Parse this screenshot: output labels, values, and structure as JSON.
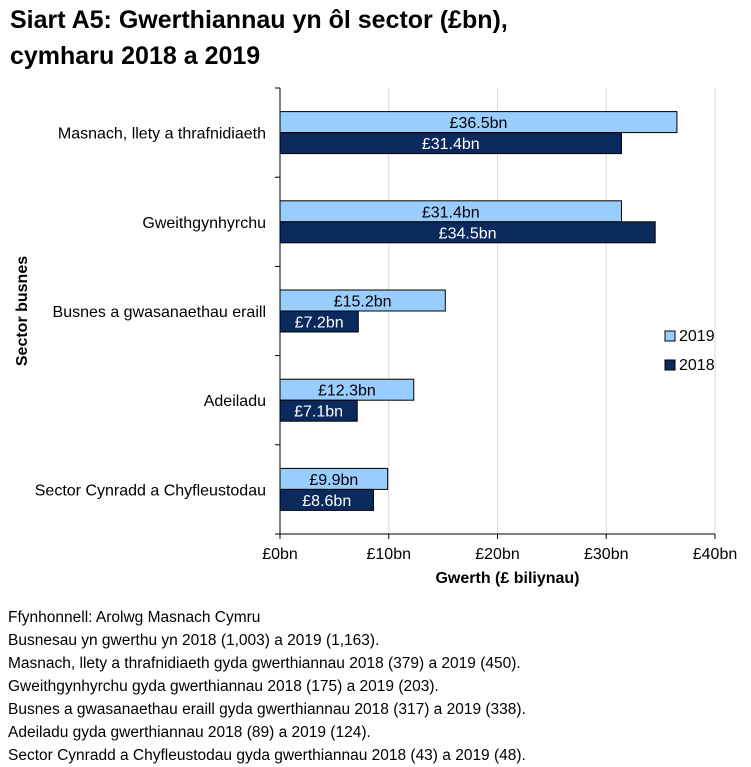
{
  "title_lines": [
    "Siart A5: Gwerthiannau yn ôl sector (£bn),",
    "cymharu 2018 a 2019"
  ],
  "chart_data": {
    "type": "bar",
    "orientation": "horizontal",
    "title": "Siart A5: Gwerthiannau yn ôl sector (£bn), cymharu 2018 a 2019",
    "xlabel": "Gwerth (£ biliynau)",
    "ylabel": "Sector busnes",
    "categories": [
      "Masnach, llety a thrafnidiaeth",
      "Gweithgynhyrchu",
      "Busnes a gwasanaethau eraill",
      "Adeiladu",
      "Sector Cynradd a Chyfleustodau"
    ],
    "series": [
      {
        "name": "2019",
        "color": "#99ccff",
        "values": [
          36.5,
          31.4,
          15.2,
          12.3,
          9.9
        ],
        "labels": [
          "£36.5bn",
          "£31.4bn",
          "£15.2bn",
          "£12.3bn",
          "£9.9bn"
        ],
        "label_color": "#000000"
      },
      {
        "name": "2018",
        "color": "#0a2a5e",
        "values": [
          31.4,
          34.5,
          7.2,
          7.1,
          8.6
        ],
        "labels": [
          "£31.4bn",
          "£34.5bn",
          "£7.2bn",
          "£7.1bn",
          "£8.6bn"
        ],
        "label_color": "#ffffff"
      }
    ],
    "xlim": [
      0,
      40
    ],
    "xticks": [
      0,
      10,
      20,
      30,
      40
    ],
    "xtick_labels": [
      "£0bn",
      "£10bn",
      "£20bn",
      "£30bn",
      "£40bn"
    ],
    "grid": true,
    "legend_position": "right"
  },
  "notes": [
    "Ffynhonnell: Arolwg Masnach Cymru",
    "Busnesau yn gwerthu yn 2018 (1,003) a 2019 (1,163).",
    "Masnach, llety a thrafnidiaeth gyda gwerthiannau 2018 (379) a 2019 (450).",
    "Gweithgynhyrchu gyda gwerthiannau 2018 (175) a 2019 (203).",
    "Busnes a gwasanaethau eraill gyda gwerthiannau 2018 (317) a 2019 (338).",
    "Adeiladu gyda gwerthiannau 2018 (89) a 2019 (124).",
    "Sector Cynradd a Chyfleustodau gyda gwerthiannau 2018 (43) a 2019 (48)."
  ]
}
